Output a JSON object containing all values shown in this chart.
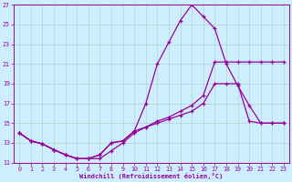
{
  "xlabel": "Windchill (Refroidissement éolien,°C)",
  "bg_color": "#cceeff",
  "line_color": "#990099",
  "grid_color": "#aaccbb",
  "xlim": [
    -0.5,
    23.5
  ],
  "ylim": [
    11,
    27
  ],
  "xticks": [
    0,
    1,
    2,
    3,
    4,
    5,
    6,
    7,
    8,
    9,
    10,
    11,
    12,
    13,
    14,
    15,
    16,
    17,
    18,
    19,
    20,
    21,
    22,
    23
  ],
  "yticks": [
    11,
    13,
    15,
    17,
    19,
    21,
    23,
    25,
    27
  ],
  "curve1_x": [
    0,
    1,
    2,
    3,
    4,
    5,
    6,
    7,
    8,
    9,
    10,
    11,
    12,
    13,
    14,
    15,
    16,
    17,
    18,
    19,
    20,
    21,
    22,
    23
  ],
  "curve1_y": [
    14.0,
    13.2,
    12.9,
    12.3,
    11.8,
    11.4,
    11.4,
    11.8,
    13.0,
    13.2,
    14.2,
    17.0,
    21.0,
    23.2,
    25.4,
    27.0,
    25.8,
    24.6,
    21.0,
    18.8,
    16.8,
    15.0,
    15.0,
    15.0
  ],
  "curve2_x": [
    0,
    1,
    2,
    3,
    4,
    5,
    6,
    7,
    8,
    9,
    10,
    11,
    12,
    13,
    14,
    15,
    16,
    17,
    18,
    19,
    20,
    21,
    22,
    23
  ],
  "curve2_y": [
    14.0,
    13.2,
    12.9,
    12.3,
    11.8,
    11.4,
    11.4,
    11.4,
    12.2,
    13.0,
    14.0,
    14.6,
    15.2,
    15.6,
    16.2,
    16.8,
    17.8,
    21.2,
    21.2,
    21.2,
    21.2,
    21.2,
    21.2,
    21.2
  ],
  "curve3_x": [
    0,
    1,
    2,
    3,
    4,
    5,
    6,
    7,
    8,
    9,
    10,
    11,
    12,
    13,
    14,
    15,
    16,
    17,
    18,
    19,
    20,
    21,
    22,
    23
  ],
  "curve3_y": [
    14.0,
    13.2,
    12.9,
    12.3,
    11.8,
    11.4,
    11.4,
    11.8,
    13.0,
    13.2,
    14.2,
    14.6,
    15.0,
    15.4,
    15.8,
    16.2,
    17.0,
    19.0,
    19.0,
    19.0,
    15.2,
    15.0,
    15.0,
    15.0
  ]
}
